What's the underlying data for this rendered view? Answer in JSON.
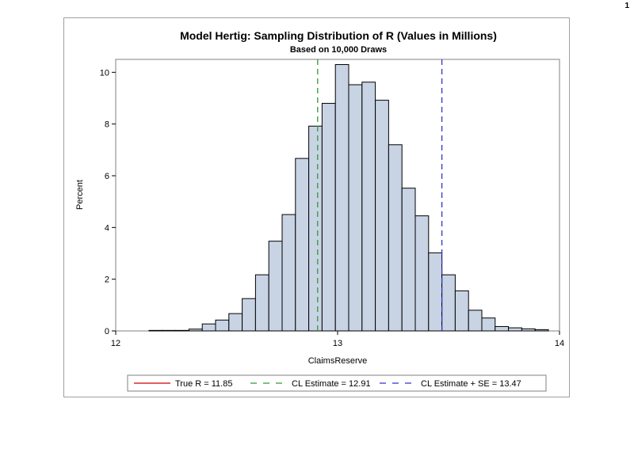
{
  "page": {
    "number": "1"
  },
  "chart_data": {
    "type": "bar",
    "title": "Model Hertig: Sampling Distribution of R (Values in Millions)",
    "subtitle": "Based on 10,000 Draws",
    "xlabel": "ClaimsReserve",
    "ylabel": "Percent",
    "xlim": [
      12,
      14
    ],
    "ylim": [
      0,
      10.5
    ],
    "xticks": [
      12,
      13,
      14
    ],
    "yticks": [
      0,
      2,
      4,
      6,
      8,
      10
    ],
    "bin_width": 0.06,
    "bins": [
      {
        "x": 12.18,
        "value": 0.02
      },
      {
        "x": 12.24,
        "value": 0.02
      },
      {
        "x": 12.3,
        "value": 0.02
      },
      {
        "x": 12.36,
        "value": 0.07
      },
      {
        "x": 12.42,
        "value": 0.27
      },
      {
        "x": 12.48,
        "value": 0.42
      },
      {
        "x": 12.54,
        "value": 0.67
      },
      {
        "x": 12.6,
        "value": 1.25
      },
      {
        "x": 12.66,
        "value": 2.17
      },
      {
        "x": 12.72,
        "value": 3.47
      },
      {
        "x": 12.78,
        "value": 4.5
      },
      {
        "x": 12.84,
        "value": 6.67
      },
      {
        "x": 12.9,
        "value": 7.92
      },
      {
        "x": 12.96,
        "value": 8.8
      },
      {
        "x": 13.02,
        "value": 10.3
      },
      {
        "x": 13.08,
        "value": 9.52
      },
      {
        "x": 13.14,
        "value": 9.62
      },
      {
        "x": 13.2,
        "value": 8.92
      },
      {
        "x": 13.26,
        "value": 7.2
      },
      {
        "x": 13.32,
        "value": 5.52
      },
      {
        "x": 13.38,
        "value": 4.45
      },
      {
        "x": 13.44,
        "value": 3.02
      },
      {
        "x": 13.5,
        "value": 2.17
      },
      {
        "x": 13.56,
        "value": 1.55
      },
      {
        "x": 13.62,
        "value": 0.8
      },
      {
        "x": 13.68,
        "value": 0.5
      },
      {
        "x": 13.74,
        "value": 0.17
      },
      {
        "x": 13.8,
        "value": 0.12
      },
      {
        "x": 13.86,
        "value": 0.08
      },
      {
        "x": 13.92,
        "value": 0.05
      }
    ],
    "reference_lines": [
      {
        "name": "True R",
        "label": "True R = 11.85",
        "value": 11.85,
        "color": "#cc0000",
        "style": "solid"
      },
      {
        "name": "CL Estimate",
        "label": "CL Estimate = 12.91",
        "value": 12.91,
        "color": "#339933",
        "style": "dashed"
      },
      {
        "name": "CL Estimate + SE",
        "label": "CL Estimate + SE = 13.47",
        "value": 13.47,
        "color": "#3333cc",
        "style": "dashed"
      }
    ],
    "bar_fill": "#c8d4e4",
    "bar_stroke": "#000000",
    "legend_position": "bottom"
  }
}
